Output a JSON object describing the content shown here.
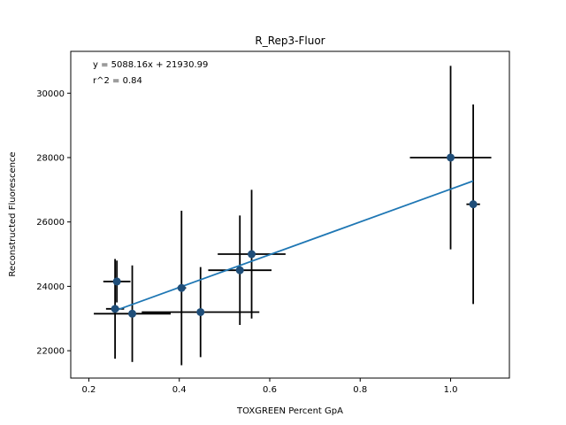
{
  "chart_data": {
    "type": "scatter",
    "title": "R_Rep3-Fluor",
    "xlabel": "TOXGREEN Percent GpA",
    "ylabel": "Reconstructed Fluorescence",
    "xlim": [
      0.16,
      1.13
    ],
    "ylim": [
      21150,
      31300
    ],
    "xticks": [
      0.2,
      0.4,
      0.6,
      0.8,
      1.0
    ],
    "xtick_labels": [
      "0.2",
      "0.4",
      "0.6",
      "0.8",
      "1.0"
    ],
    "yticks": [
      22000,
      24000,
      26000,
      28000,
      30000
    ],
    "ytick_labels": [
      "22000",
      "24000",
      "26000",
      "28000",
      "30000"
    ],
    "grid": false,
    "annotations": [
      "y = 5088.16x + 21930.99",
      "r^2 = 0.84"
    ],
    "fit_line": {
      "slope": 5088.16,
      "intercept": 21930.99,
      "x_range": [
        0.255,
        1.05
      ],
      "color": "#1f77b4"
    },
    "point_color": "#1f4e79",
    "errorbar_color": "#000000",
    "points": [
      {
        "x": 0.262,
        "y": 24150,
        "xerr": 0.03,
        "yerr": 650
      },
      {
        "x": 0.258,
        "y": 23300,
        "xerr": 0.02,
        "yerr": 1550
      },
      {
        "x": 0.296,
        "y": 23150,
        "xerr": 0.085,
        "yerr": 1500
      },
      {
        "x": 0.405,
        "y": 23950,
        "xerr": 0.01,
        "yerr": 2400
      },
      {
        "x": 0.447,
        "y": 23200,
        "xerr": 0.13,
        "yerr": 1400
      },
      {
        "x": 0.534,
        "y": 24500,
        "xerr": 0.07,
        "yerr": 1700
      },
      {
        "x": 0.56,
        "y": 25000,
        "xerr": 0.075,
        "yerr": 2000
      },
      {
        "x": 1.0,
        "y": 28000,
        "xerr": 0.09,
        "yerr": 2850
      },
      {
        "x": 1.05,
        "y": 26550,
        "xerr": 0.015,
        "yerr": 3100
      }
    ]
  }
}
